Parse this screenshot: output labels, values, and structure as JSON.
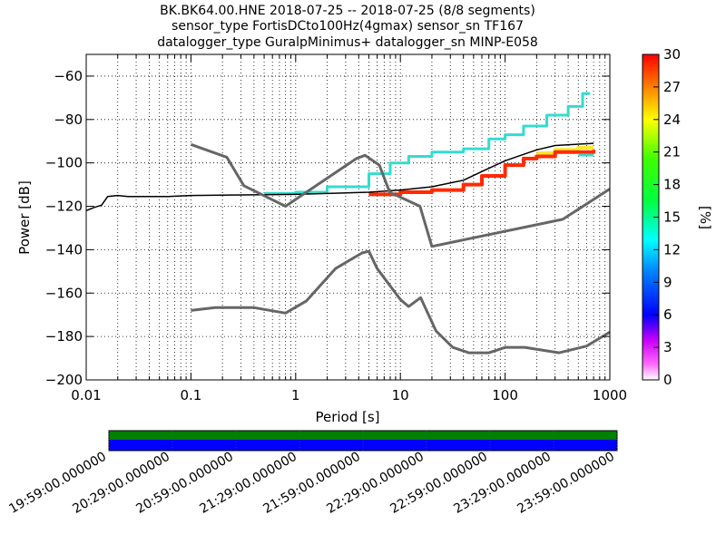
{
  "chart_data": {
    "type": "heatmap",
    "title_lines": [
      "BK.BK64.00.HNE   2018-07-25 -- 2018-07-25  (8/8 segments)",
      "sensor_type FortisDCto100Hz(4gmax) sensor_sn TF167",
      "datalogger_type GuralpMinimus+ datalogger_sn MINP-E058"
    ],
    "xlabel": "Period [s]",
    "ylabel": "Power [dB]",
    "x_scale": "log",
    "xlim": [
      0.01,
      1000
    ],
    "ylim": [
      -200,
      -50
    ],
    "x_ticks": [
      {
        "value": 0.01,
        "label": "0.01"
      },
      {
        "value": 0.1,
        "label": "0.1"
      },
      {
        "value": 1,
        "label": "1"
      },
      {
        "value": 10,
        "label": "10"
      },
      {
        "value": 100,
        "label": "100"
      },
      {
        "value": 1000,
        "label": "1000"
      }
    ],
    "y_ticks": [
      {
        "value": -60,
        "label": "−60"
      },
      {
        "value": -80,
        "label": "−80"
      },
      {
        "value": -100,
        "label": "−100"
      },
      {
        "value": -120,
        "label": "−120"
      },
      {
        "value": -140,
        "label": "−140"
      },
      {
        "value": -160,
        "label": "−160"
      },
      {
        "value": -180,
        "label": "−180"
      },
      {
        "value": -200,
        "label": "−200"
      }
    ],
    "grid": true,
    "colorbar": {
      "label": "[%]",
      "range": [
        0,
        30
      ],
      "ticks": [
        {
          "value": 0,
          "label": "0"
        },
        {
          "value": 3,
          "label": "3"
        },
        {
          "value": 6,
          "label": "6"
        },
        {
          "value": 9,
          "label": "9"
        },
        {
          "value": 12,
          "label": "12"
        },
        {
          "value": 15,
          "label": "15"
        },
        {
          "value": 18,
          "label": "18"
        },
        {
          "value": 21,
          "label": "21"
        },
        {
          "value": 24,
          "label": "24"
        },
        {
          "value": 27,
          "label": "27"
        },
        {
          "value": 30,
          "label": "30"
        }
      ]
    },
    "series": [
      {
        "role": "high-noise-model",
        "color": "#666666",
        "points": [
          [
            0.1,
            -91.5
          ],
          [
            0.22,
            -97.4
          ],
          [
            0.32,
            -110.5
          ],
          [
            0.8,
            -120
          ],
          [
            3.8,
            -98
          ],
          [
            4.6,
            -96.5
          ],
          [
            6.3,
            -101
          ],
          [
            7.9,
            -113.5
          ],
          [
            15.4,
            -120
          ],
          [
            20,
            -138.5
          ],
          [
            354.8,
            -126
          ],
          [
            1000,
            -112
          ]
        ]
      },
      {
        "role": "low-noise-model",
        "color": "#666666",
        "points": [
          [
            0.1,
            -168
          ],
          [
            0.17,
            -166.7
          ],
          [
            0.4,
            -166.7
          ],
          [
            0.8,
            -169.2
          ],
          [
            1.26,
            -163.7
          ],
          [
            2.4,
            -148.7
          ],
          [
            4.3,
            -141.5
          ],
          [
            5.0,
            -140.7
          ],
          [
            6.0,
            -148.7
          ],
          [
            10,
            -163
          ],
          [
            12,
            -166.2
          ],
          [
            15.6,
            -162.1
          ],
          [
            21.9,
            -177.5
          ],
          [
            31.6,
            -185
          ],
          [
            45,
            -187.5
          ],
          [
            70,
            -187.5
          ],
          [
            101,
            -185
          ],
          [
            154,
            -185
          ],
          [
            328,
            -187.5
          ],
          [
            600,
            -184.4
          ],
          [
            1000,
            -178
          ]
        ]
      },
      {
        "role": "median-psd",
        "color": "#000000",
        "points": [
          [
            0.01,
            -122
          ],
          [
            0.012,
            -120.5
          ],
          [
            0.014,
            -119.5
          ],
          [
            0.016,
            -115.5
          ],
          [
            0.02,
            -115
          ],
          [
            0.025,
            -115.5
          ],
          [
            0.06,
            -115.5
          ],
          [
            0.1,
            -115
          ],
          [
            1,
            -114.5
          ],
          [
            5,
            -113.5
          ],
          [
            10,
            -112.5
          ],
          [
            20,
            -111
          ],
          [
            40,
            -108
          ],
          [
            60,
            -104
          ],
          [
            100,
            -99
          ],
          [
            200,
            -94
          ],
          [
            300,
            -92
          ],
          [
            700,
            -91
          ]
        ]
      },
      {
        "role": "psd-density-upper",
        "color": "#33dcd0",
        "points": [
          [
            0.5,
            -114
          ],
          [
            1,
            -113.5
          ],
          [
            2,
            -111
          ],
          [
            5,
            -105
          ],
          [
            8,
            -100
          ],
          [
            12,
            -97
          ],
          [
            20,
            -95
          ],
          [
            40,
            -93.5
          ],
          [
            70,
            -89
          ],
          [
            100,
            -87
          ],
          [
            150,
            -83
          ],
          [
            250,
            -78
          ],
          [
            400,
            -74
          ],
          [
            550,
            -68
          ],
          [
            650,
            -68
          ]
        ]
      },
      {
        "role": "psd-density-lower",
        "color": "#ff2a00",
        "points": [
          [
            5,
            -114.5
          ],
          [
            10,
            -113.5
          ],
          [
            20,
            -112.5
          ],
          [
            40,
            -110
          ],
          [
            60,
            -106
          ],
          [
            100,
            -101
          ],
          [
            150,
            -98
          ],
          [
            200,
            -97
          ],
          [
            300,
            -95
          ],
          [
            700,
            -94
          ]
        ]
      },
      {
        "role": "psd-density-yellow",
        "color": "#f6e92e",
        "points": [
          [
            200,
            -95.5
          ],
          [
            300,
            -94
          ],
          [
            500,
            -93
          ],
          [
            700,
            -93
          ]
        ]
      },
      {
        "role": "psd-density-min",
        "color": "#33dcd0",
        "points": [
          [
            500,
            -96.5
          ],
          [
            700,
            -96.5
          ]
        ]
      }
    ]
  },
  "timeline": {
    "top_band_color": "#008000",
    "bottom_band_color": "#0000ff",
    "tick_labels": [
      "19:59:00.000000",
      "20:29:00.000000",
      "20:59:00.000000",
      "21:29:00.000000",
      "21:59:00.000000",
      "22:29:00.000000",
      "22:59:00.000000",
      "23:29:00.000000",
      "23:59:00.000000"
    ]
  }
}
